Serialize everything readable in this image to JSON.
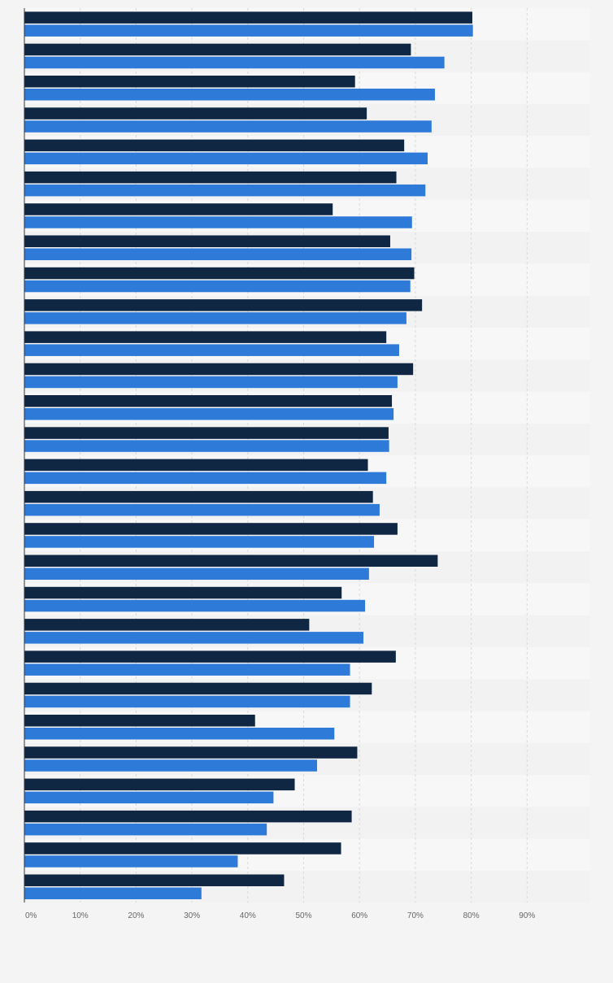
{
  "chart_data": {
    "type": "bar",
    "orientation": "horizontal",
    "xlim": [
      0,
      90
    ],
    "xticks": [
      "0%",
      "10%",
      "20%",
      "30%",
      "40%",
      "50%",
      "60%",
      "70%",
      "80%",
      "90%"
    ],
    "grid": true,
    "series": [
      {
        "color": "#0f2742",
        "values": [
          80.2,
          69.2,
          59.2,
          61.3,
          68.0,
          66.6,
          55.2,
          65.5,
          69.8,
          71.2,
          64.8,
          69.6,
          65.8,
          65.2,
          61.5,
          62.4,
          66.8,
          74.0,
          56.8,
          51.0,
          66.5,
          62.2,
          41.3,
          59.6,
          48.4,
          58.6,
          56.7,
          46.5
        ]
      },
      {
        "color": "#2e7ad9",
        "values": [
          80.3,
          75.2,
          73.5,
          72.9,
          72.2,
          71.8,
          69.4,
          69.3,
          69.1,
          68.4,
          67.1,
          66.8,
          66.1,
          65.3,
          64.8,
          63.6,
          62.6,
          61.7,
          61.0,
          60.7,
          58.3,
          58.3,
          55.5,
          52.4,
          44.6,
          43.4,
          38.2,
          31.7
        ]
      }
    ]
  }
}
